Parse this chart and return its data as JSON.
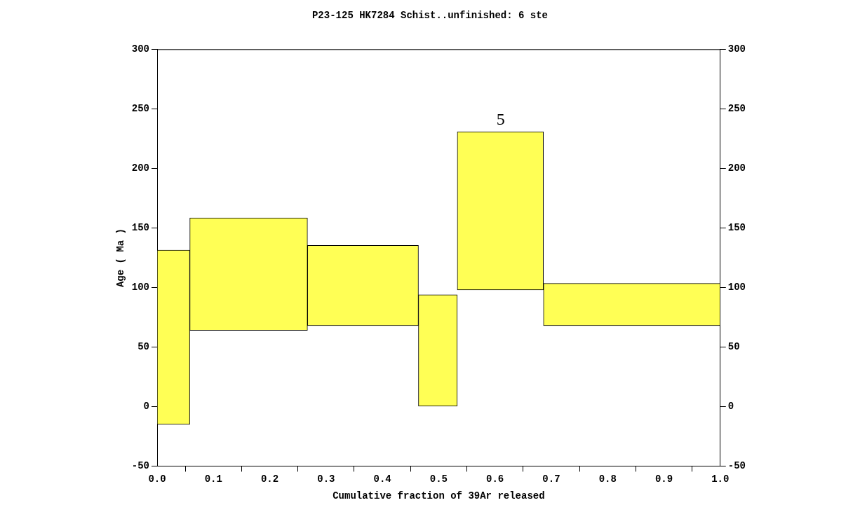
{
  "chart_data": {
    "type": "histogram",
    "title": "P23-125 HK7284 Schist..unfinished: 6 ste",
    "xlabel": "Cumulative fraction of 39Ar released",
    "ylabel": "Age ( Ma )",
    "bins": [
      0,
      0.058,
      0.267,
      0.464,
      0.533,
      0.686,
      1.0
    ],
    "base": [
      -15,
      64,
      68,
      0,
      98,
      68
    ],
    "values": [
      146.5,
      94.5,
      67.5,
      94,
      133,
      35.5
    ],
    "color": "#ffff55",
    "xlim": [
      0,
      1
    ],
    "xticks": [
      {
        "value": 0,
        "label": "0.0"
      },
      0.1,
      0.2,
      0.3,
      0.4,
      0.5,
      0.6,
      0.7,
      0.8,
      0.9,
      {
        "value": 1,
        "label": "1.0"
      }
    ],
    "ylim": [
      -50,
      300
    ],
    "yticks": [
      -50,
      0,
      50,
      100,
      150,
      200,
      250,
      300
    ],
    "y2lim": [
      -50,
      300
    ],
    "y2ticks": [
      -50,
      0,
      50,
      100,
      150,
      200,
      250,
      300
    ],
    "annotations": [
      {
        "text": "5",
        "x": 0.61,
        "y": 231
      }
    ],
    "grid": false
  }
}
